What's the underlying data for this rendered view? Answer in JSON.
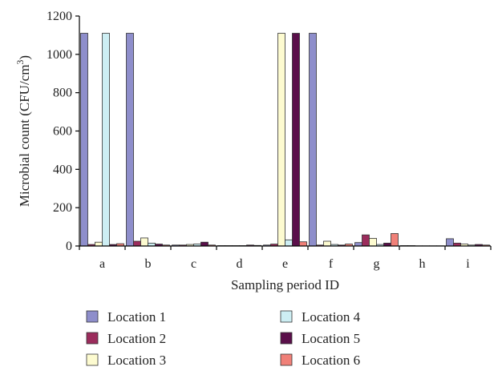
{
  "chart_data": {
    "type": "bar",
    "xlabel": "Sampling period ID",
    "ylabel": "Microbial count (CFU/cm",
    "ylabel_sup": "3",
    "ylabel_close": ")",
    "ylim": [
      0,
      1200
    ],
    "yticks": [
      "0",
      "200",
      "400",
      "600",
      "800",
      "1000",
      "1200"
    ],
    "grid": false,
    "legend_position": "bottom",
    "categories": [
      "a",
      "b",
      "c",
      "d",
      "e",
      "f",
      "g",
      "h",
      "i"
    ],
    "series": [
      {
        "name": "Location 1",
        "color": "#8e8ecb",
        "values": [
          1110,
          1110,
          5,
          2,
          5,
          1110,
          18,
          2,
          38
        ]
      },
      {
        "name": "Location 2",
        "color": "#9b2c5c",
        "values": [
          8,
          25,
          5,
          2,
          10,
          5,
          58,
          2,
          15
        ]
      },
      {
        "name": "Location 3",
        "color": "#fdfbd0",
        "values": [
          20,
          42,
          8,
          2,
          1110,
          25,
          40,
          1,
          10
        ]
      },
      {
        "name": "Location 4",
        "color": "#cdeef3",
        "values": [
          1110,
          15,
          10,
          2,
          32,
          8,
          8,
          1,
          5
        ]
      },
      {
        "name": "Location 5",
        "color": "#5a0f4a",
        "values": [
          8,
          10,
          20,
          5,
          1110,
          5,
          15,
          1,
          8
        ]
      },
      {
        "name": "Location 6",
        "color": "#f08078",
        "values": [
          12,
          5,
          5,
          3,
          22,
          10,
          65,
          1,
          5
        ]
      }
    ]
  }
}
